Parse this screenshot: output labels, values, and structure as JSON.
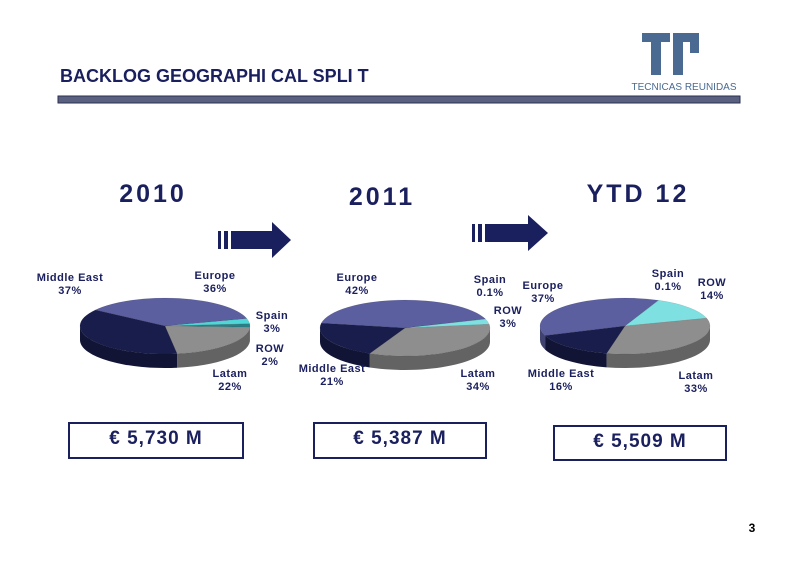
{
  "header": {
    "title": "BACKLOG GEOGRAPHI CAL SPLI T",
    "logo_text": "TECNICAS REUNIDAS"
  },
  "page_number": "3",
  "chart_data": [
    {
      "type": "pie",
      "title": "2010",
      "total": "€ 5,730 M",
      "categories": [
        "Europe",
        "Spain",
        "ROW",
        "Latam",
        "Middle East"
      ],
      "values": [
        36,
        3,
        2,
        22,
        37
      ],
      "value_labels": [
        "36%",
        "3%",
        "2%",
        "22%",
        "37%"
      ],
      "colors": [
        "#5c5f9f",
        "#4fd6d6",
        "#2b7f86",
        "#8e8e8e",
        "#181d4b"
      ]
    },
    {
      "type": "pie",
      "title": "2011",
      "total": "€ 5,387 M",
      "categories": [
        "Europe",
        "Spain",
        "ROW",
        "Latam",
        "Middle East"
      ],
      "values": [
        42,
        0.1,
        3,
        34,
        21
      ],
      "value_labels": [
        "42%",
        "0.1%",
        "3%",
        "34%",
        "21%"
      ],
      "colors": [
        "#5c5f9f",
        "#4fd6d6",
        "#7ee0e0",
        "#8e8e8e",
        "#181d4b"
      ]
    },
    {
      "type": "pie",
      "title": "YTD 12",
      "total": "€ 5,509 M",
      "categories": [
        "Europe",
        "Spain",
        "ROW",
        "Latam",
        "Middle East"
      ],
      "values": [
        37,
        0.1,
        14,
        33,
        16
      ],
      "value_labels": [
        "37%",
        "0.1%",
        "14%",
        "33%",
        "16%"
      ],
      "colors": [
        "#5c5f9f",
        "#4fd6d6",
        "#7ee0e0",
        "#8e8e8e",
        "#181d4b"
      ]
    }
  ]
}
